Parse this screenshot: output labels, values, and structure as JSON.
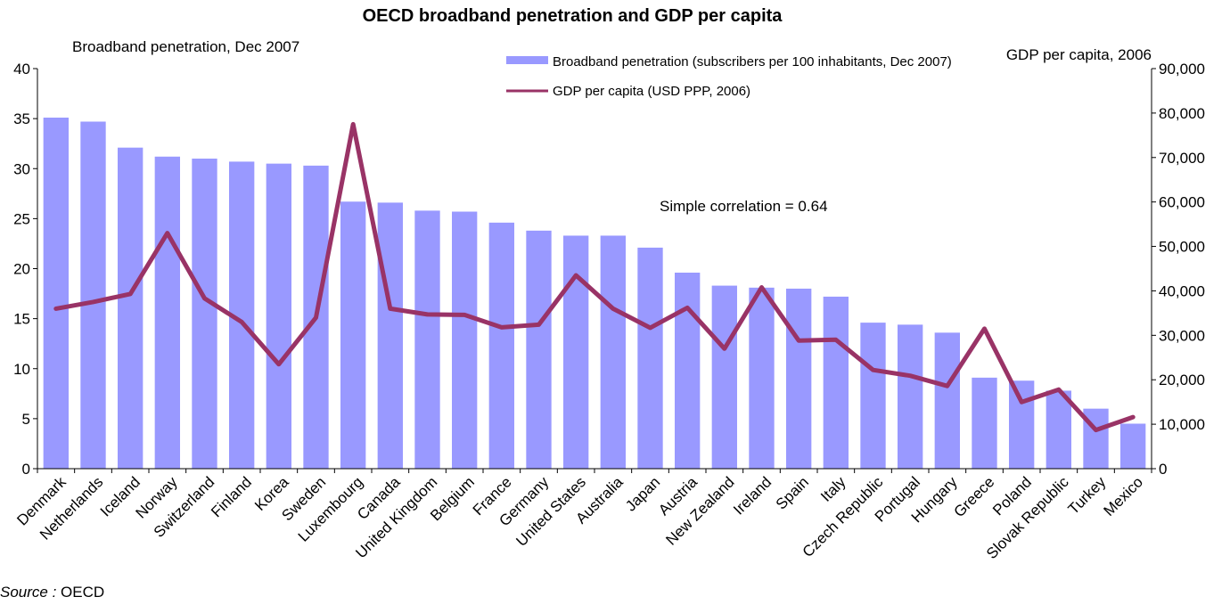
{
  "chart_data": {
    "type": "bar",
    "title": "OECD broadband penetration and GDP per capita",
    "y_left_label": "Broadband penetration, Dec 2007",
    "y_right_label": "GDP per capita, 2006",
    "ylim_left": [
      0,
      40
    ],
    "ylim_right": [
      0,
      90000
    ],
    "yticks_left": [
      "0",
      "5",
      "10",
      "15",
      "20",
      "25",
      "30",
      "35",
      "40"
    ],
    "yticks_right": [
      "0",
      "10,000",
      "20,000",
      "30,000",
      "40,000",
      "50,000",
      "60,000",
      "70,000",
      "80,000",
      "90,000"
    ],
    "grid": false,
    "legend_position": "top-right",
    "categories": [
      "Denmark",
      "Netherlands",
      "Iceland",
      "Norway",
      "Switzerland",
      "Finland",
      "Korea",
      "Sweden",
      "Luxembourg",
      "Canada",
      "United Kingdom",
      "Belgium",
      "France",
      "Germany",
      "United States",
      "Australia",
      "Japan",
      "Austria",
      "New Zealand",
      "Ireland",
      "Spain",
      "Italy",
      "Czech Republic",
      "Portugal",
      "Hungary",
      "Greece",
      "Poland",
      "Slovak Republic",
      "Turkey",
      "Mexico"
    ],
    "series": [
      {
        "name": "Broadband penetration (subscribers per 100 inhabitants, Dec 2007)",
        "type": "bar",
        "axis": "left",
        "color": "#9999ff",
        "values": [
          35.1,
          34.7,
          32.1,
          31.2,
          31.0,
          30.7,
          30.5,
          30.3,
          26.7,
          26.6,
          25.8,
          25.7,
          24.6,
          23.8,
          23.3,
          23.3,
          22.1,
          19.6,
          18.3,
          18.1,
          18.0,
          17.2,
          14.6,
          14.4,
          13.6,
          9.1,
          8.8,
          7.8,
          6.0,
          4.5
        ]
      },
      {
        "name": "GDP per capita (USD PPP, 2006)",
        "type": "line",
        "axis": "right",
        "color": "#993366",
        "values": [
          36000,
          37500,
          39300,
          53000,
          38300,
          33000,
          23500,
          34000,
          77500,
          36000,
          34700,
          34600,
          31800,
          32400,
          43500,
          36000,
          31700,
          36200,
          27000,
          40800,
          28800,
          29000,
          22200,
          20900,
          18600,
          31500,
          15000,
          17800,
          8700,
          11600
        ]
      }
    ],
    "annotation": "Simple correlation = 0.64",
    "source_label": "Source :",
    "source_value": " OECD"
  }
}
